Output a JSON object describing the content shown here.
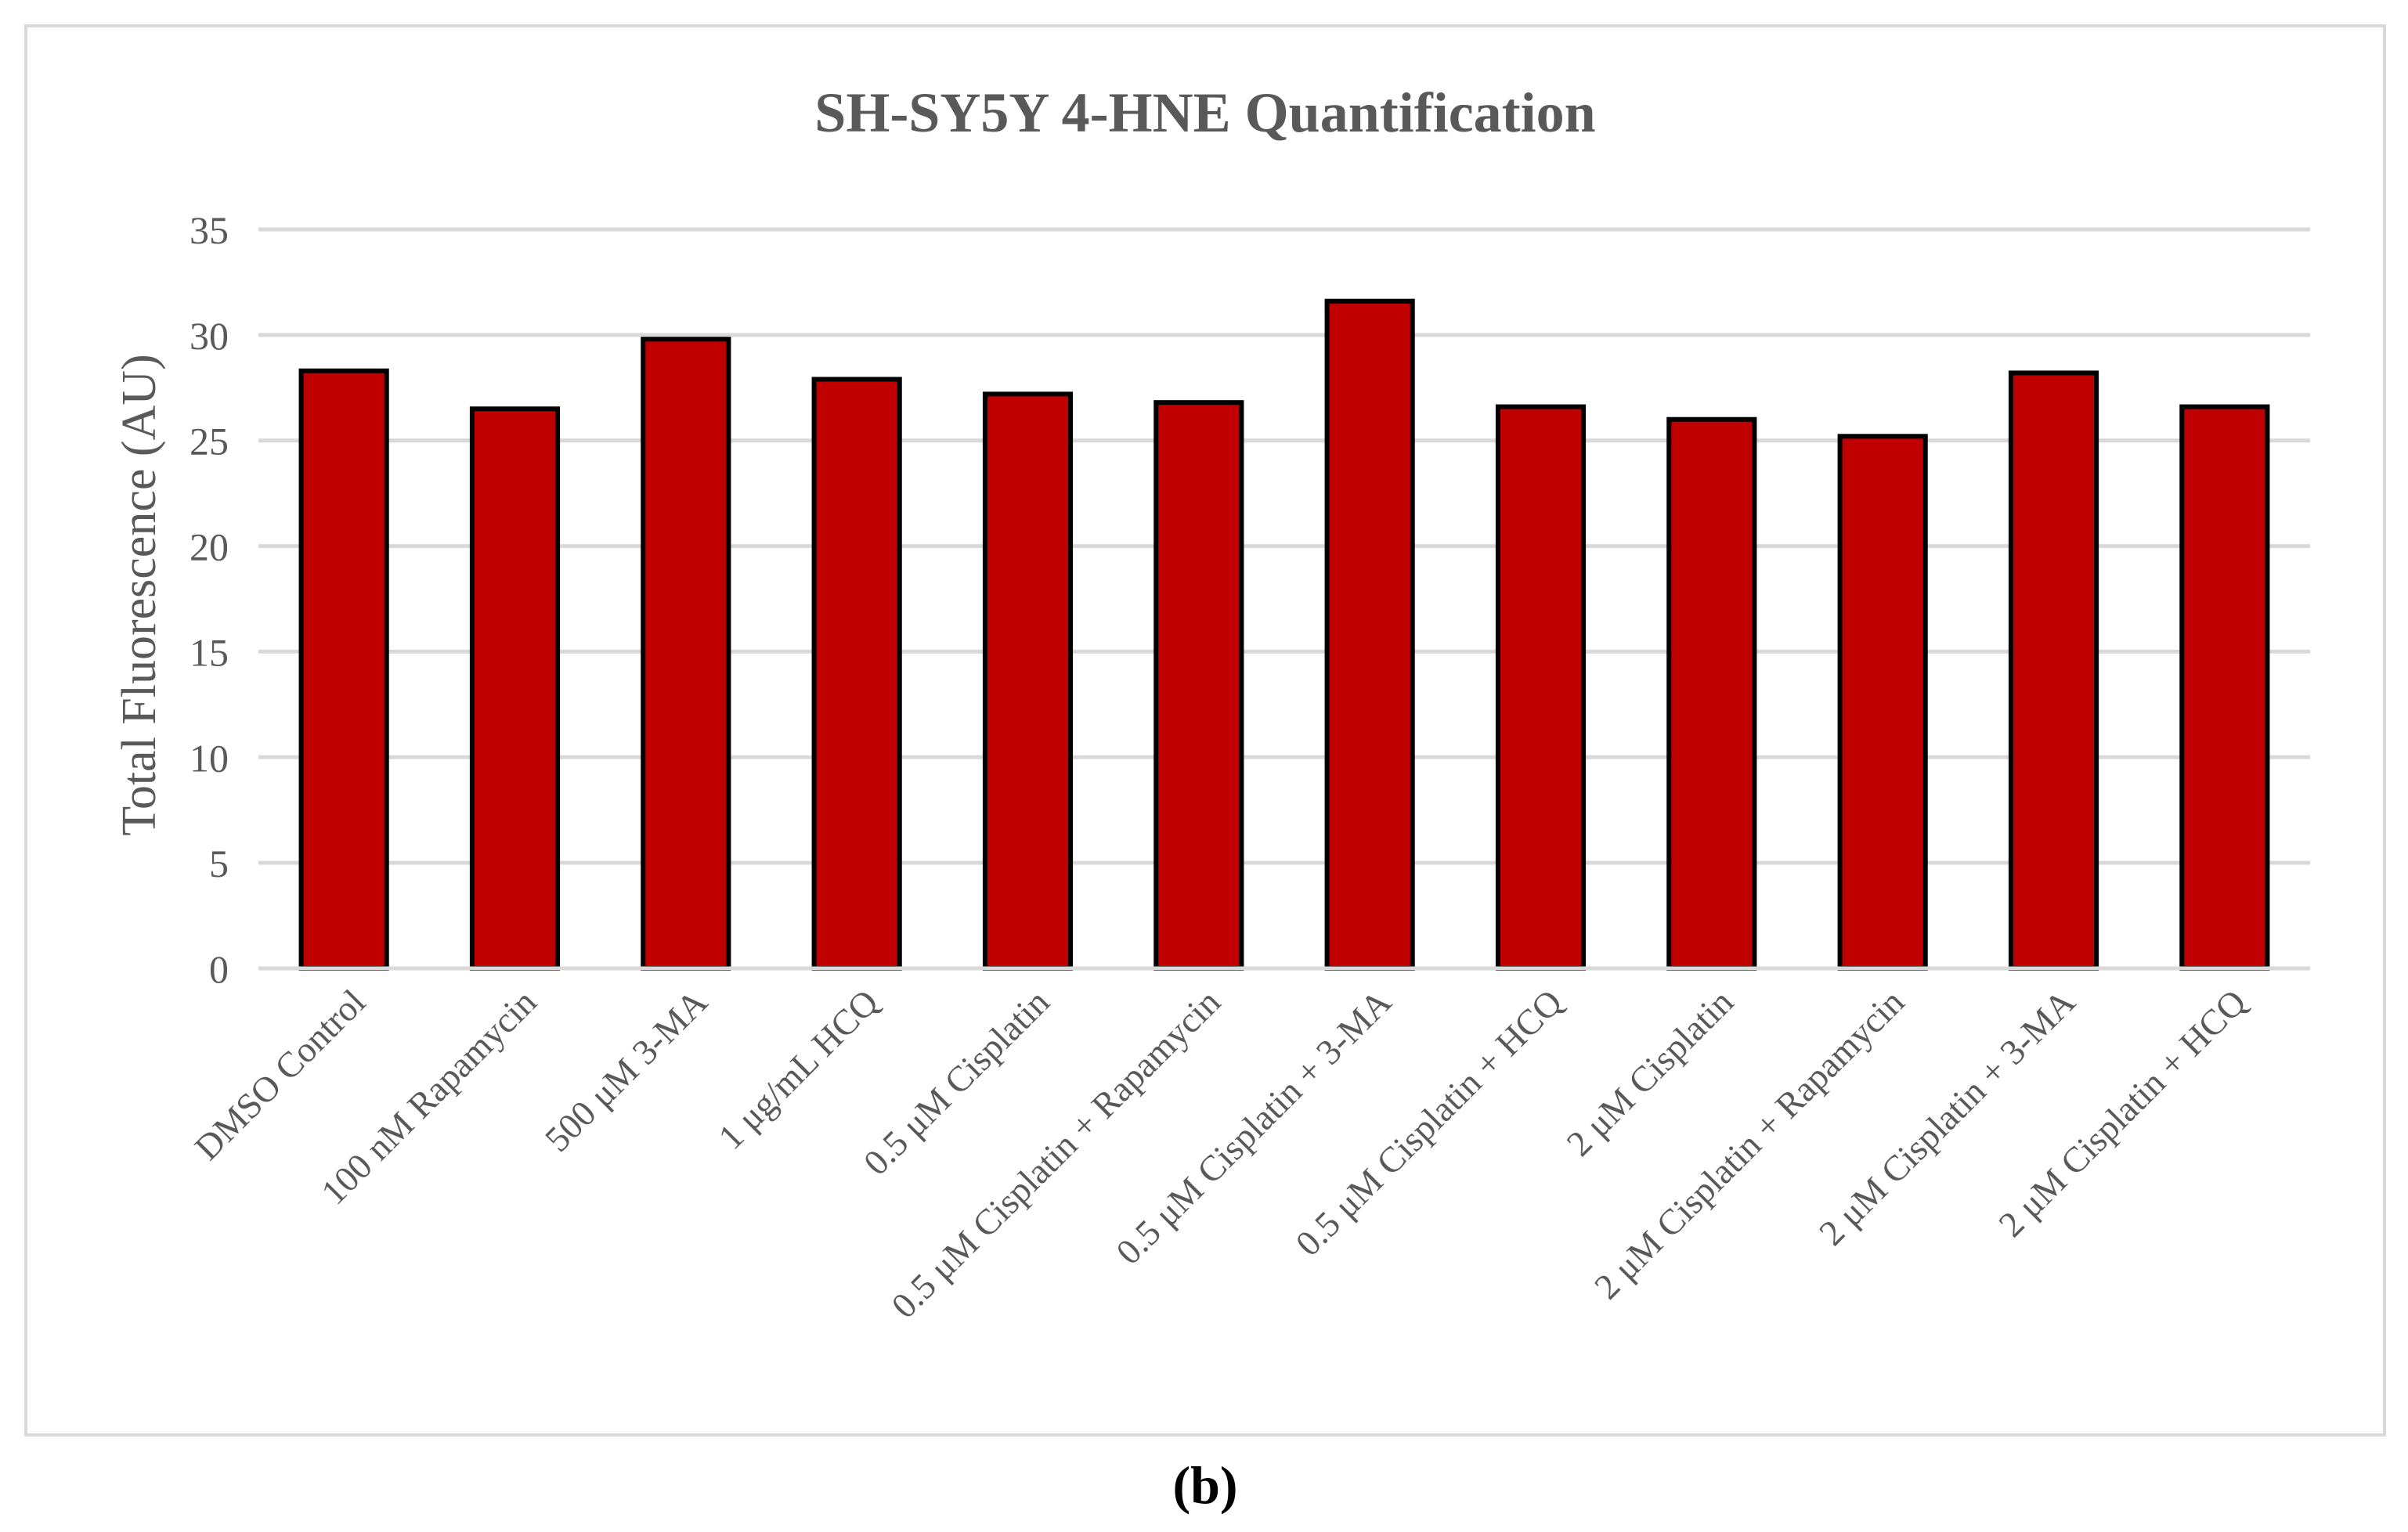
{
  "panel_label": "(b)",
  "chart_data": {
    "type": "bar",
    "title": "SH-SY5Y 4-HNE Quantification",
    "ylabel": "Total Fluorescence (AU)",
    "xlabel": "",
    "ylim": [
      0,
      35
    ],
    "yticks": [
      0,
      5,
      10,
      15,
      20,
      25,
      30,
      35
    ],
    "grid": true,
    "categories": [
      "DMSO Control",
      "100 nM Rapamycin",
      "500 μM 3-MA",
      "1 μg/mL HCQ",
      "0.5 μM Cisplatin",
      "0.5 μM Cisplatin + Rapamycin",
      "0.5 μM Cisplatin + 3-MA",
      "0.5 μM Cisplatin + HCQ",
      "2 μM Cisplatin",
      "2 μM Cisplatin + Rapamycin",
      "2 μM Cisplatin + 3-MA",
      "2 μM Cisplatin + HCQ"
    ],
    "values": [
      28.3,
      26.5,
      29.8,
      27.9,
      27.2,
      26.8,
      31.6,
      26.6,
      26.0,
      25.2,
      28.2,
      26.6
    ],
    "colors": {
      "bar_fill": "#c00000",
      "bar_stroke": "#000000",
      "grid": "#d9d9d9",
      "text": "#595959",
      "frame": "#d9d9d9"
    }
  }
}
